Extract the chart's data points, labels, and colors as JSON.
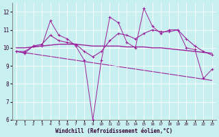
{
  "x": [
    0,
    1,
    2,
    3,
    4,
    5,
    6,
    7,
    8,
    9,
    10,
    11,
    12,
    13,
    14,
    15,
    16,
    17,
    18,
    19,
    20,
    21,
    22,
    23
  ],
  "line_zigzag": [
    9.8,
    9.7,
    10.1,
    10.1,
    11.5,
    10.7,
    10.5,
    10.1,
    9.3,
    6.0,
    9.3,
    11.7,
    11.4,
    10.3,
    10.0,
    12.2,
    11.2,
    10.8,
    11.0,
    11.0,
    10.0,
    9.9,
    8.3,
    8.8
  ],
  "line_smooth": [
    9.8,
    9.8,
    10.1,
    10.2,
    10.7,
    10.4,
    10.3,
    10.2,
    9.8,
    9.5,
    9.8,
    10.4,
    10.8,
    10.7,
    10.5,
    10.8,
    11.0,
    10.9,
    10.9,
    11.0,
    10.5,
    10.1,
    9.8,
    9.6
  ],
  "line_flat": [
    10.0,
    10.0,
    10.05,
    10.1,
    10.15,
    10.2,
    10.2,
    10.2,
    10.15,
    10.1,
    10.1,
    10.1,
    10.1,
    10.05,
    10.05,
    10.05,
    10.0,
    10.0,
    9.95,
    9.9,
    9.85,
    9.8,
    9.75,
    9.7
  ],
  "line_trend": [
    9.8,
    9.73,
    9.66,
    9.59,
    9.52,
    9.45,
    9.38,
    9.31,
    9.24,
    9.17,
    9.1,
    9.03,
    8.96,
    8.89,
    8.82,
    8.75,
    8.68,
    8.61,
    8.54,
    8.47,
    8.4,
    8.33,
    8.26,
    8.19
  ],
  "color": "#9b1f9b",
  "bgcolor": "#c8f0f0",
  "xlabel": "Windchill (Refroidissement éolien,°C)",
  "ylim": [
    6,
    12.5
  ],
  "xlim": [
    -0.5,
    23.5
  ],
  "yticks": [
    6,
    7,
    8,
    9,
    10,
    11,
    12
  ],
  "xticks": [
    0,
    1,
    2,
    3,
    4,
    5,
    6,
    7,
    8,
    9,
    10,
    11,
    12,
    13,
    14,
    15,
    16,
    17,
    18,
    19,
    20,
    21,
    22,
    23
  ]
}
